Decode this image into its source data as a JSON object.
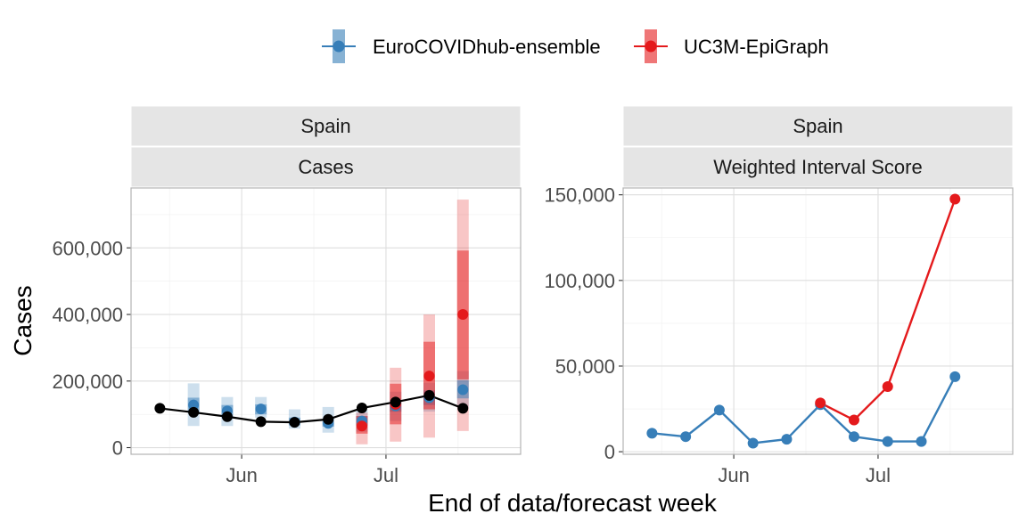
{
  "colors": {
    "ensemble": "#377eb8",
    "epigraph": "#e41a1c",
    "observed": "#000000"
  },
  "legend": {
    "items": [
      {
        "label": "EuroCOVIDhub-ensemble",
        "color": "#377eb8"
      },
      {
        "label": "UC3M-EpiGraph",
        "color": "#e41a1c"
      }
    ]
  },
  "xlabel": "End of data/forecast week",
  "ylabel": "Cases",
  "chart_data": [
    {
      "type": "line",
      "strip_top": "Spain",
      "strip_bottom": "Cases",
      "x_ticks": [
        "Jun",
        "Jul"
      ],
      "x_tick_dates": [
        "2021-06-01",
        "2021-07-01"
      ],
      "xlim": [
        "2021-05-09",
        "2021-07-29"
      ],
      "ylim": [
        -20000,
        780000
      ],
      "y_ticks": [
        0,
        200000,
        400000,
        600000
      ],
      "y_tick_labels": [
        "0",
        "200,000",
        "400,000",
        "600,000"
      ],
      "observed": {
        "dates": [
          "2021-05-15",
          "2021-05-22",
          "2021-05-29",
          "2021-06-05",
          "2021-06-12",
          "2021-06-19",
          "2021-06-26",
          "2021-07-03",
          "2021-07-10",
          "2021-07-17"
        ],
        "values": [
          118000,
          106000,
          93000,
          78000,
          76000,
          85000,
          119000,
          137000,
          157000,
          118000
        ]
      },
      "forecasts": [
        {
          "name": "EuroCOVIDhub-ensemble",
          "dates": [
            "2021-05-22",
            "2021-05-29",
            "2021-06-05",
            "2021-06-12",
            "2021-06-19",
            "2021-06-26",
            "2021-07-03",
            "2021-07-10",
            "2021-07-17"
          ],
          "median": [
            128000,
            110000,
            116000,
            77000,
            73000,
            80000,
            125000,
            150000,
            174000
          ],
          "inner_lower": [
            105000,
            88000,
            100000,
            67000,
            63000,
            66000,
            108000,
            128000,
            148000
          ],
          "inner_upper": [
            150000,
            128000,
            130000,
            90000,
            88000,
            94000,
            143000,
            172000,
            202000
          ],
          "outer_lower": [
            65000,
            65000,
            90000,
            57000,
            45000,
            48000,
            80000,
            108000,
            120000
          ],
          "outer_upper": [
            193000,
            152000,
            152000,
            115000,
            122000,
            112000,
            168000,
            195000,
            230000
          ]
        },
        {
          "name": "UC3M-EpiGraph",
          "dates": [
            "2021-06-26",
            "2021-07-03",
            "2021-07-10",
            "2021-07-17"
          ],
          "median": [
            65000,
            130000,
            215000,
            400000
          ],
          "inner_lower": [
            42000,
            70000,
            115000,
            205000
          ],
          "inner_upper": [
            95000,
            192000,
            318000,
            592000
          ],
          "outer_lower": [
            10000,
            18000,
            30000,
            50000
          ],
          "outer_upper": [
            105000,
            240000,
            400000,
            745000
          ]
        }
      ]
    },
    {
      "type": "line",
      "strip_top": "Spain",
      "strip_bottom": "Weighted Interval Score",
      "x_ticks": [
        "Jun",
        "Jul"
      ],
      "x_tick_dates": [
        "2021-06-01",
        "2021-07-01"
      ],
      "xlim": [
        "2021-05-09",
        "2021-07-29"
      ],
      "ylim": [
        -1500,
        154000
      ],
      "y_ticks": [
        0,
        50000,
        100000,
        150000
      ],
      "y_tick_labels": [
        "0",
        "50,000",
        "100,000",
        "150,000"
      ],
      "series": [
        {
          "name": "EuroCOVIDhub-ensemble",
          "dates": [
            "2021-05-15",
            "2021-05-22",
            "2021-05-29",
            "2021-06-05",
            "2021-06-12",
            "2021-06-19",
            "2021-06-26",
            "2021-07-03",
            "2021-07-10",
            "2021-07-17"
          ],
          "values": [
            10800,
            8800,
            24300,
            5000,
            7300,
            27500,
            8800,
            6000,
            6000,
            43800
          ]
        },
        {
          "name": "UC3M-EpiGraph",
          "dates": [
            "2021-06-19",
            "2021-06-26",
            "2021-07-03",
            "2021-07-17"
          ],
          "values": [
            28500,
            18500,
            38000,
            147500
          ]
        }
      ]
    }
  ]
}
